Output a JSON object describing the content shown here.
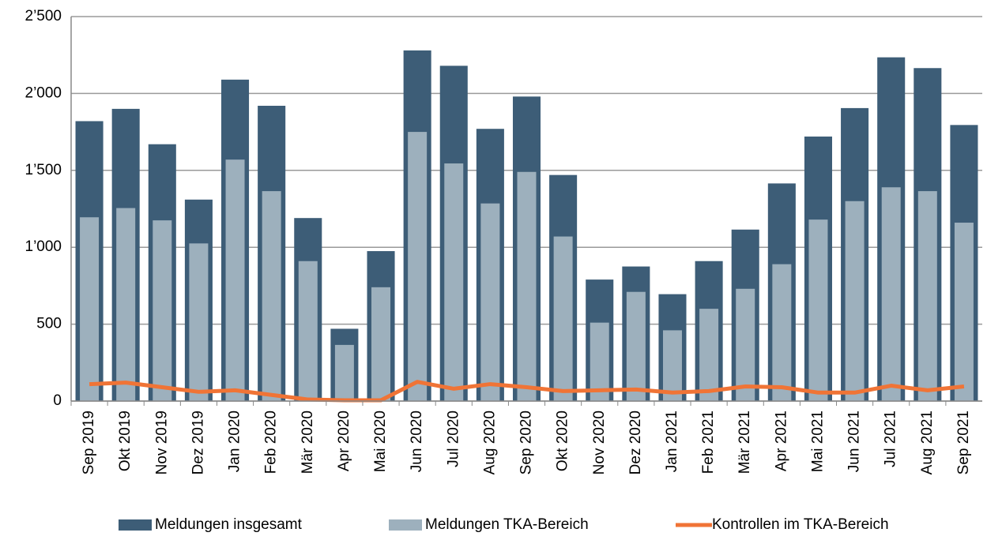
{
  "chart_data": {
    "type": "bar",
    "categories": [
      "Sep 2019",
      "Okt 2019",
      "Nov 2019",
      "Dez 2019",
      "Jan 2020",
      "Feb 2020",
      "Mär 2020",
      "Apr 2020",
      "Mai 2020",
      "Jun 2020",
      "Jul 2020",
      "Aug 2020",
      "Sep 2020",
      "Okt 2020",
      "Nov 2020",
      "Dez 2020",
      "Jan 2021",
      "Feb 2021",
      "Mär 2021",
      "Apr 2021",
      "Mai 2021",
      "Jun 2021",
      "Jul 2021",
      "Aug 2021",
      "Sep 2021"
    ],
    "series": [
      {
        "name": "Meldungen insgesamt",
        "type": "bar",
        "color": "#3d5d77",
        "values": [
          1820,
          1900,
          1670,
          1310,
          2090,
          1920,
          1190,
          470,
          975,
          2280,
          2180,
          1770,
          1980,
          1470,
          790,
          875,
          695,
          910,
          1115,
          1415,
          1720,
          1905,
          2235,
          2165,
          1795
        ]
      },
      {
        "name": "Meldungen TKA-Bereich",
        "type": "bar",
        "color": "#9db0bd",
        "values": [
          1195,
          1255,
          1175,
          1025,
          1570,
          1365,
          910,
          365,
          740,
          1750,
          1545,
          1285,
          1490,
          1070,
          510,
          710,
          460,
          600,
          730,
          890,
          1180,
          1300,
          1390,
          1365,
          1160
        ]
      },
      {
        "name": "Kontrollen im TKA-Bereich",
        "type": "line",
        "color": "#f07436",
        "values": [
          110,
          120,
          90,
          60,
          70,
          40,
          10,
          5,
          5,
          125,
          80,
          110,
          90,
          65,
          70,
          75,
          55,
          65,
          95,
          90,
          55,
          55,
          100,
          70,
          95
        ]
      }
    ],
    "ylim": [
      0,
      2500
    ],
    "yticks": [
      0,
      500,
      {
        "value": 1000,
        "label": "1’000"
      },
      {
        "value": 1500,
        "label": "1’500"
      },
      {
        "value": 2000,
        "label": "2’000"
      },
      {
        "value": 2500,
        "label": "2’500"
      }
    ],
    "grid": true
  }
}
